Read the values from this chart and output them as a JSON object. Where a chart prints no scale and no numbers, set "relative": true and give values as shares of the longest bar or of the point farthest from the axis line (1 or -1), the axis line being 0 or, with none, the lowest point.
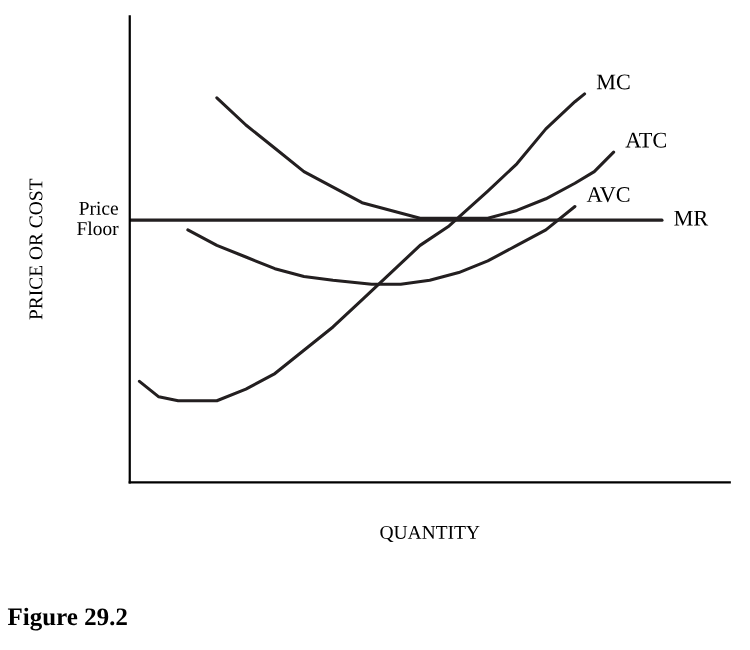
{
  "chart_data": {
    "type": "line",
    "relative": true,
    "xlabel": "QUANTITY",
    "ylabel": "PRICE OR COST",
    "categories": [
      null,
      null,
      null,
      null,
      null,
      null,
      null,
      null,
      null,
      null,
      null,
      null,
      null,
      null,
      null,
      null,
      null,
      null,
      null,
      null,
      null,
      null,
      null,
      null,
      null,
      null,
      null,
      null,
      null,
      null,
      null,
      null,
      null,
      null,
      null,
      null,
      null,
      null,
      null,
      null,
      null,
      null,
      null,
      null,
      null,
      null,
      null,
      null,
      null,
      null,
      null,
      null,
      null,
      null,
      null,
      null,
      null,
      null,
      null,
      null,
      null
    ],
    "series": [
      {
        "name": "MC",
        "color": "#231f20",
        "values": [
          null,
          0.26,
          null,
          0.22,
          null,
          0.21,
          null,
          null,
          null,
          0.21,
          null,
          null,
          0.24,
          null,
          null,
          0.28,
          null,
          null,
          0.34,
          null,
          null,
          0.4,
          null,
          null,
          0.47,
          null,
          null,
          0.54,
          null,
          null,
          0.61,
          null,
          null,
          0.66,
          null,
          null,
          null,
          0.75,
          null,
          null,
          0.82,
          null,
          null,
          0.91,
          null,
          null,
          0.98,
          1.0,
          null,
          null,
          null,
          null,
          null,
          null,
          null,
          null,
          null,
          null,
          null,
          null,
          null
        ]
      },
      {
        "name": "ATC",
        "color": "#231f20",
        "values": [
          null,
          null,
          null,
          null,
          null,
          null,
          null,
          null,
          null,
          0.99,
          null,
          null,
          0.92,
          null,
          null,
          0.86,
          null,
          null,
          0.8,
          null,
          null,
          0.76,
          null,
          null,
          0.72,
          null,
          null,
          0.7,
          null,
          null,
          0.68,
          null,
          null,
          null,
          0.68,
          null,
          null,
          0.68,
          null,
          null,
          0.7,
          null,
          null,
          0.73,
          null,
          null,
          0.77,
          null,
          0.8,
          null,
          0.85,
          null,
          null,
          null,
          null,
          null,
          null,
          null,
          null,
          null,
          null
        ]
      },
      {
        "name": "AVC",
        "color": "#231f20",
        "values": [
          null,
          null,
          null,
          null,
          null,
          null,
          0.65,
          null,
          null,
          0.61,
          null,
          null,
          0.58,
          null,
          null,
          0.55,
          null,
          null,
          0.53,
          null,
          null,
          0.52,
          null,
          null,
          null,
          0.51,
          null,
          null,
          0.51,
          null,
          null,
          0.52,
          null,
          null,
          0.54,
          null,
          null,
          0.57,
          null,
          null,
          0.61,
          null,
          null,
          0.65,
          null,
          null,
          0.71,
          null,
          null,
          null,
          null,
          null,
          null,
          null,
          null,
          null,
          null,
          null,
          null,
          null,
          null
        ]
      },
      {
        "name": "MR",
        "color": "#231f20",
        "values": [
          0.675,
          null,
          null,
          null,
          null,
          null,
          null,
          null,
          null,
          null,
          null,
          null,
          null,
          null,
          null,
          null,
          null,
          null,
          null,
          null,
          null,
          null,
          null,
          null,
          null,
          null,
          null,
          null,
          null,
          null,
          null,
          null,
          null,
          null,
          null,
          null,
          null,
          null,
          null,
          null,
          null,
          null,
          null,
          null,
          null,
          null,
          null,
          null,
          null,
          null,
          null,
          null,
          null,
          null,
          null,
          0.675,
          null,
          null,
          null,
          null,
          null
        ]
      }
    ],
    "annotations": [
      "Price\nFloor",
      "Figure 29.2"
    ]
  }
}
